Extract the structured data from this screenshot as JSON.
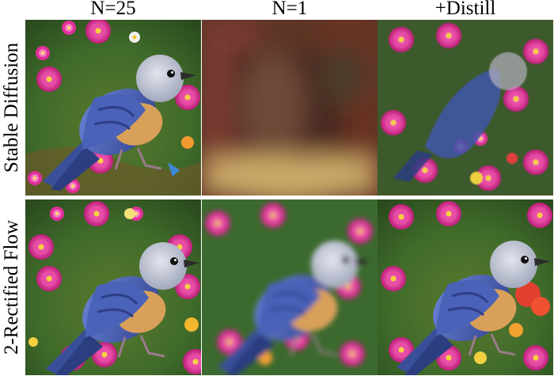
{
  "columns": [
    {
      "label": "N=25"
    },
    {
      "label": "N=1"
    },
    {
      "label": "+Distill"
    }
  ],
  "rows": [
    {
      "label": "Stable Diffusion"
    },
    {
      "label": "2-Rectified Flow"
    }
  ],
  "panels": [
    {
      "row": "Stable Diffusion",
      "column": "N=25",
      "content": "sharp bluebird on grass with pink flowers"
    },
    {
      "row": "Stable Diffusion",
      "column": "N=1",
      "content": "blurry brown smear"
    },
    {
      "row": "Stable Diffusion",
      "column": "+Distill",
      "content": "bluebird with distorted pink flowers"
    },
    {
      "row": "2-Rectified Flow",
      "column": "N=25",
      "content": "sharp bluebird with pink flowers"
    },
    {
      "row": "2-Rectified Flow",
      "column": "N=1",
      "content": "blurry bluebird with flowers"
    },
    {
      "row": "2-Rectified Flow",
      "column": "+Distill",
      "content": "sharp bluebird with pink and red flowers"
    }
  ],
  "colors": {
    "bird_blue": "#4a62b8",
    "bird_grey": "#b8bcc8",
    "breast_orange": "#d9a05a",
    "flower_pink": "#e0309a",
    "grass_green": "#3f6a2a",
    "blur_brown": "#6b3a28"
  }
}
